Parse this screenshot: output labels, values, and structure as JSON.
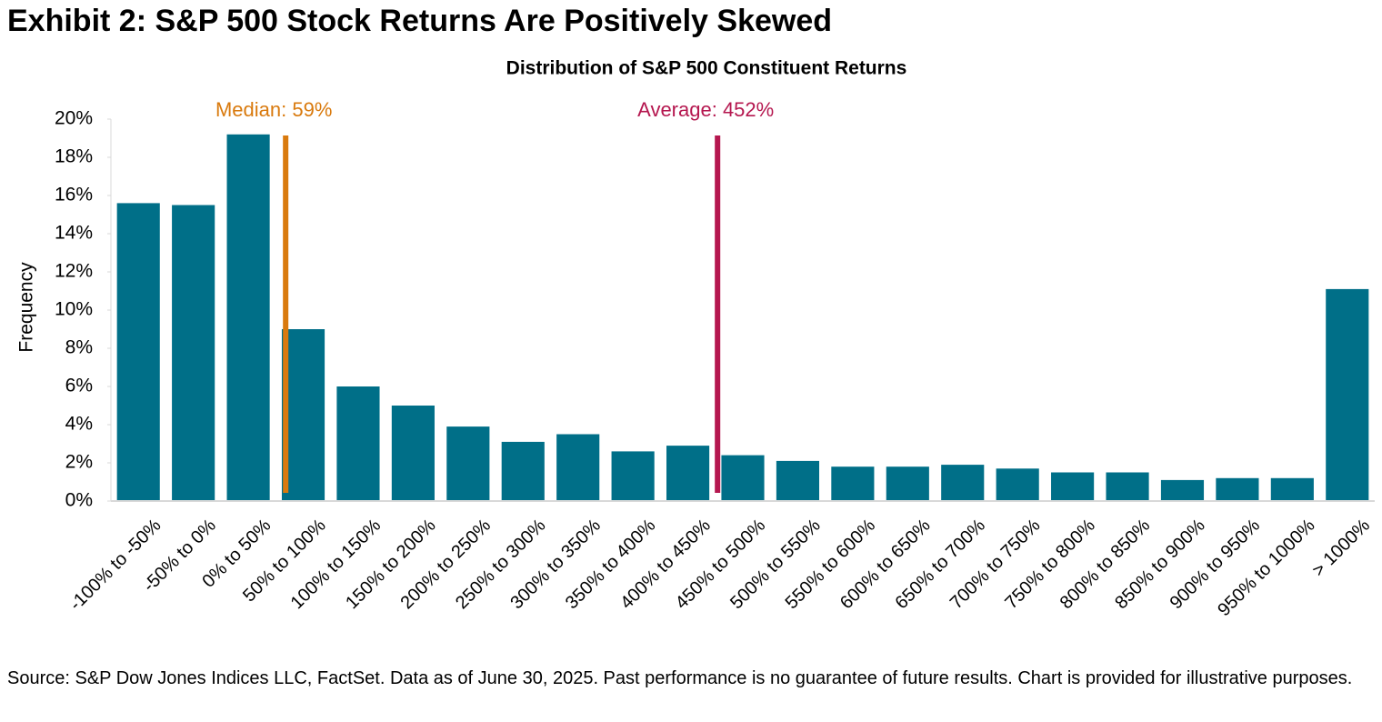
{
  "header": "Exhibit 2: S&P 500 Stock Returns Are Positively Skewed",
  "chart_data": {
    "type": "bar",
    "title": "Distribution of S&P 500 Constituent Returns",
    "y_label": "Frequency",
    "categories": [
      "-100% to -50%",
      "-50% to 0%",
      "0% to 50%",
      "50% to 100%",
      "100% to 150%",
      "150% to 200%",
      "200% to 250%",
      "250% to 300%",
      "300% to 350%",
      "350% to 400%",
      "400% to 450%",
      "450% to 500%",
      "500% to 550%",
      "550% to 600%",
      "600% to 650%",
      "650% to 700%",
      "700% to 750%",
      "750% to 800%",
      "800% to 850%",
      "850% to 900%",
      "900% to 950%",
      "950% to 1000%",
      "> 1000%"
    ],
    "values": [
      15.6,
      15.5,
      19.2,
      9.0,
      6.0,
      5.0,
      3.9,
      3.1,
      3.5,
      2.6,
      2.9,
      2.4,
      2.1,
      1.8,
      1.8,
      1.9,
      1.7,
      1.5,
      1.5,
      1.1,
      1.2,
      1.2,
      11.1
    ],
    "color": "#006f88",
    "ylim": [
      0,
      20
    ],
    "yticks": [
      {
        "value": 0,
        "label": "0%"
      },
      {
        "value": 2,
        "label": "2%"
      },
      {
        "value": 4,
        "label": "4%"
      },
      {
        "value": 6,
        "label": "6%"
      },
      {
        "value": 8,
        "label": "8%"
      },
      {
        "value": 10,
        "label": "10%"
      },
      {
        "value": 12,
        "label": "12%"
      },
      {
        "value": 14,
        "label": "14%"
      },
      {
        "value": 16,
        "label": "16%"
      },
      {
        "value": 18,
        "label": "18%"
      },
      {
        "value": 20,
        "label": "20%"
      }
    ],
    "annotations": [
      {
        "label": "Median: 59%",
        "value": 59,
        "color": "#d97a0e"
      },
      {
        "label": "Average: 452%",
        "value": 452,
        "color": "#b5174f"
      }
    ]
  },
  "footnote": "Source: S&P Dow Jones Indices LLC, FactSet. Data as of June 30, 2025. Past performance is no guarantee of future results. Chart is provided for illustrative purposes."
}
